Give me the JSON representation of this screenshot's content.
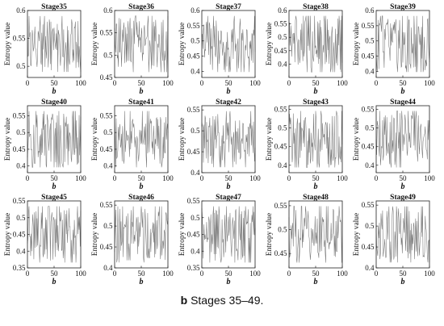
{
  "caption": {
    "label": "b",
    "text": " Stages 35–49."
  },
  "chart_data": [
    {
      "type": "line",
      "title": "Stage35",
      "xlabel": "b",
      "ylabel": "Entropy value",
      "xlim": [
        0,
        100
      ],
      "ylim": [
        0.48,
        0.6
      ],
      "xticks": [
        0,
        50,
        100
      ],
      "yticks": [
        0.5,
        0.55,
        0.6
      ],
      "seed": 35
    },
    {
      "type": "line",
      "title": "Stage36",
      "xlabel": "b",
      "ylabel": "Entropy value",
      "xlim": [
        0,
        100
      ],
      "ylim": [
        0.45,
        0.6
      ],
      "xticks": [
        0,
        50,
        100
      ],
      "yticks": [
        0.45,
        0.5,
        0.55,
        0.6
      ],
      "seed": 36
    },
    {
      "type": "line",
      "title": "Stage37",
      "xlabel": "b",
      "ylabel": "Entropy value",
      "xlim": [
        0,
        100
      ],
      "ylim": [
        0.38,
        0.6
      ],
      "xticks": [
        0,
        50,
        100
      ],
      "yticks": [
        0.4,
        0.45,
        0.5,
        0.55,
        0.6
      ],
      "seed": 37
    },
    {
      "type": "line",
      "title": "Stage38",
      "xlabel": "b",
      "ylabel": "Entropy value",
      "xlim": [
        0,
        100
      ],
      "ylim": [
        0.35,
        0.6
      ],
      "xticks": [
        0,
        50,
        100
      ],
      "yticks": [
        0.4,
        0.45,
        0.5,
        0.55,
        0.6
      ],
      "seed": 38
    },
    {
      "type": "line",
      "title": "Stage39",
      "xlabel": "b",
      "ylabel": "Entropy value",
      "xlim": [
        0,
        100
      ],
      "ylim": [
        0.38,
        0.6
      ],
      "xticks": [
        0,
        50,
        100
      ],
      "yticks": [
        0.4,
        0.45,
        0.5,
        0.55,
        0.6
      ],
      "seed": 39
    },
    {
      "type": "line",
      "title": "Stage40",
      "xlabel": "b",
      "ylabel": "Entropy value",
      "xlim": [
        0,
        100
      ],
      "ylim": [
        0.38,
        0.58
      ],
      "xticks": [
        0,
        50,
        100
      ],
      "yticks": [
        0.4,
        0.45,
        0.5,
        0.55
      ],
      "seed": 40
    },
    {
      "type": "line",
      "title": "Stage41",
      "xlabel": "b",
      "ylabel": "Entropy value",
      "xlim": [
        0,
        100
      ],
      "ylim": [
        0.38,
        0.58
      ],
      "xticks": [
        0,
        50,
        100
      ],
      "yticks": [
        0.4,
        0.45,
        0.5,
        0.55
      ],
      "seed": 41
    },
    {
      "type": "line",
      "title": "Stage42",
      "xlabel": "b",
      "ylabel": "Entropy value",
      "xlim": [
        0,
        100
      ],
      "ylim": [
        0.4,
        0.56
      ],
      "xticks": [
        0,
        50,
        100
      ],
      "yticks": [
        0.4,
        0.45,
        0.5,
        0.55
      ],
      "seed": 42
    },
    {
      "type": "line",
      "title": "Stage43",
      "xlabel": "b",
      "ylabel": "Entropy value",
      "xlim": [
        0,
        100
      ],
      "ylim": [
        0.38,
        0.56
      ],
      "xticks": [
        0,
        50,
        100
      ],
      "yticks": [
        0.4,
        0.45,
        0.5,
        0.55
      ],
      "seed": 43
    },
    {
      "type": "line",
      "title": "Stage44",
      "xlabel": "b",
      "ylabel": "Entropy value",
      "xlim": [
        0,
        100
      ],
      "ylim": [
        0.38,
        0.56
      ],
      "xticks": [
        0,
        50,
        100
      ],
      "yticks": [
        0.4,
        0.45,
        0.5,
        0.55
      ],
      "seed": 44
    },
    {
      "type": "line",
      "title": "Stage45",
      "xlabel": "b",
      "ylabel": "Entropy value",
      "xlim": [
        0,
        100
      ],
      "ylim": [
        0.35,
        0.55
      ],
      "xticks": [
        0,
        50,
        100
      ],
      "yticks": [
        0.35,
        0.4,
        0.45,
        0.5,
        0.55
      ],
      "seed": 45
    },
    {
      "type": "line",
      "title": "Stage46",
      "xlabel": "b",
      "ylabel": "Entropy value",
      "xlim": [
        0,
        100
      ],
      "ylim": [
        0.4,
        0.56
      ],
      "xticks": [
        0,
        50,
        100
      ],
      "yticks": [
        0.4,
        0.45,
        0.5,
        0.55
      ],
      "seed": 46
    },
    {
      "type": "line",
      "title": "Stage47",
      "xlabel": "b",
      "ylabel": "Entropy value",
      "xlim": [
        0,
        100
      ],
      "ylim": [
        0.35,
        0.55
      ],
      "xticks": [
        0,
        50,
        100
      ],
      "yticks": [
        0.35,
        0.4,
        0.45,
        0.5,
        0.55
      ],
      "seed": 47
    },
    {
      "type": "line",
      "title": "Stage48",
      "xlabel": "b",
      "ylabel": "Entropy value",
      "xlim": [
        0,
        100
      ],
      "ylim": [
        0.42,
        0.56
      ],
      "xticks": [
        0,
        50,
        100
      ],
      "yticks": [
        0.45,
        0.5,
        0.55
      ],
      "seed": 48
    },
    {
      "type": "line",
      "title": "Stage49",
      "xlabel": "b",
      "ylabel": "Entropy value",
      "xlim": [
        0,
        100
      ],
      "ylim": [
        0.4,
        0.56
      ],
      "xticks": [
        0,
        50,
        100
      ],
      "yticks": [
        0.4,
        0.45,
        0.5,
        0.55
      ],
      "seed": 49
    }
  ]
}
